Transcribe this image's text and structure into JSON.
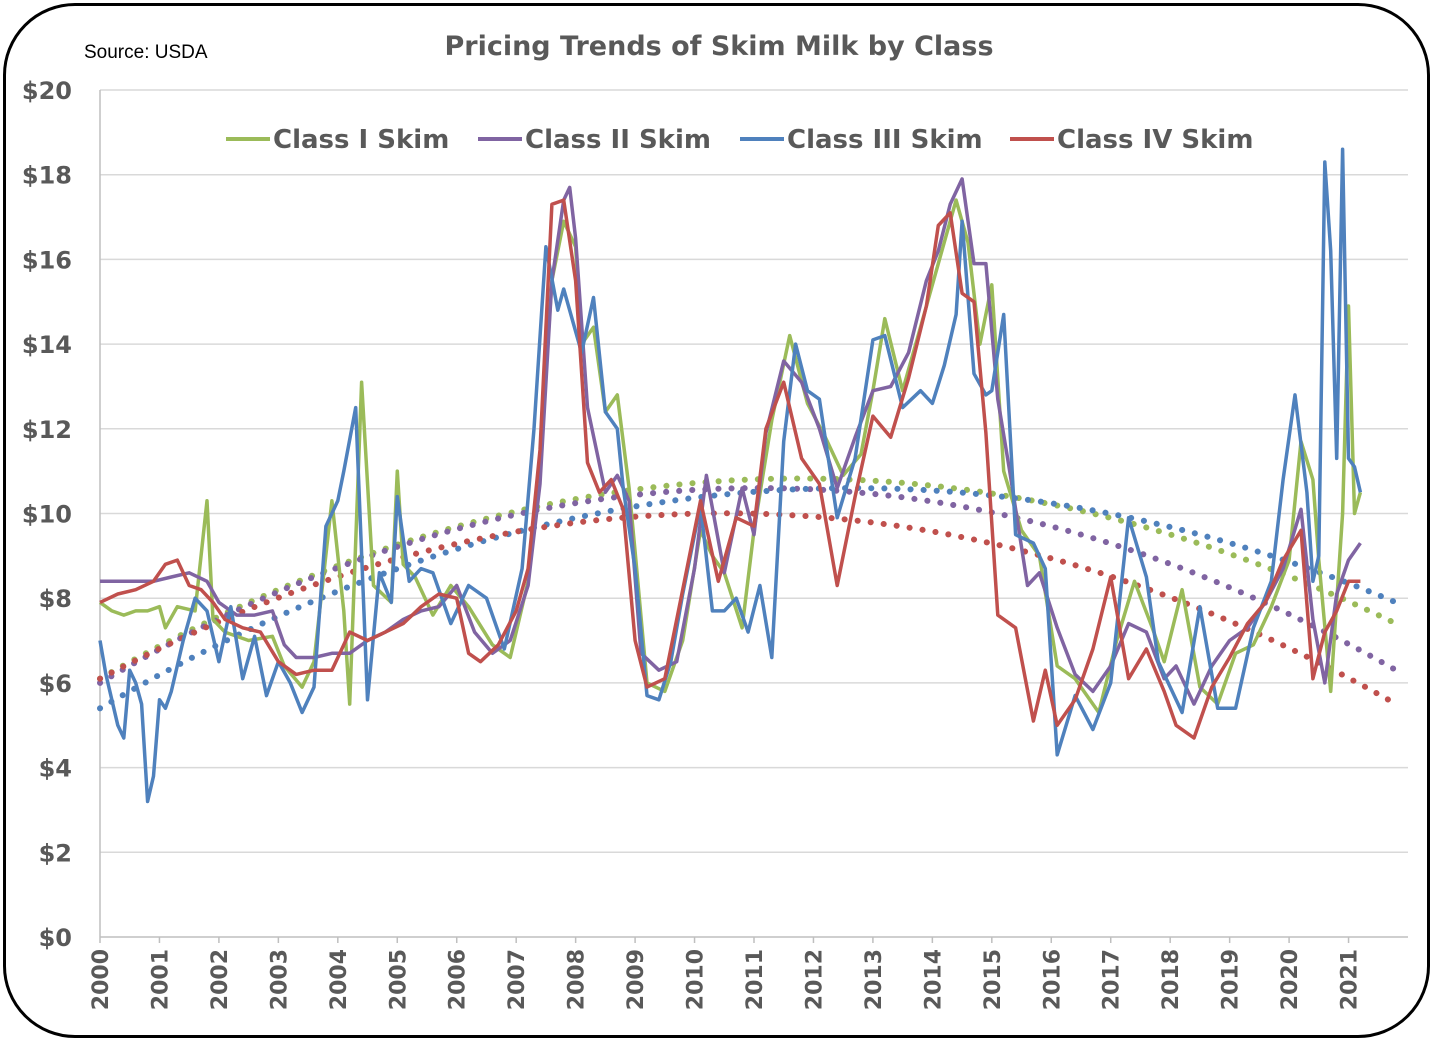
{
  "chart_data": {
    "type": "line",
    "title": "Pricing Trends of Skim Milk by Class",
    "source": "Source: USDA",
    "xlabel": "",
    "ylabel": "",
    "ylim": [
      0,
      20
    ],
    "xlim": [
      2000,
      2022
    ],
    "y_ticks": [
      0,
      2,
      4,
      6,
      8,
      10,
      12,
      14,
      16,
      18,
      20
    ],
    "y_tick_labels": [
      "$0",
      "$2",
      "$4",
      "$6",
      "$8",
      "$10",
      "$12",
      "$14",
      "$16",
      "$18",
      "$20"
    ],
    "x_ticks": [
      2000,
      2001,
      2002,
      2003,
      2004,
      2005,
      2006,
      2007,
      2008,
      2009,
      2010,
      2011,
      2012,
      2013,
      2014,
      2015,
      2016,
      2017,
      2018,
      2019,
      2020,
      2021
    ],
    "x_tick_labels": [
      "2000",
      "2001",
      "2002",
      "2003",
      "2004",
      "2005",
      "2006",
      "2007",
      "2008",
      "2009",
      "2010",
      "2011",
      "2012",
      "2013",
      "2014",
      "2015",
      "2016",
      "2017",
      "2018",
      "2019",
      "2020",
      "2021"
    ],
    "grid": true,
    "legend_position": "top-center",
    "series": [
      {
        "name": "Class I Skim",
        "color": "#9BBB59",
        "x": [
          2000.0,
          2000.2,
          2000.4,
          2000.6,
          2000.8,
          2001.0,
          2001.1,
          2001.3,
          2001.6,
          2001.8,
          2001.9,
          2002.1,
          2002.5,
          2002.9,
          2003.1,
          2003.4,
          2003.6,
          2003.9,
          2004.1,
          2004.2,
          2004.4,
          2004.6,
          2004.9,
          2005.0,
          2005.1,
          2005.3,
          2005.6,
          2005.9,
          2006.2,
          2006.6,
          2006.9,
          2007.2,
          2007.4,
          2007.6,
          2007.8,
          2008.0,
          2008.1,
          2008.3,
          2008.5,
          2008.7,
          2008.9,
          2009.0,
          2009.2,
          2009.5,
          2009.8,
          2010.1,
          2010.3,
          2010.5,
          2010.8,
          2011.0,
          2011.3,
          2011.6,
          2011.9,
          2012.2,
          2012.5,
          2012.8,
          2013.0,
          2013.2,
          2013.5,
          2013.8,
          2014.1,
          2014.4,
          2014.6,
          2014.8,
          2015.0,
          2015.2,
          2015.5,
          2015.8,
          2016.1,
          2016.4,
          2016.8,
          2017.1,
          2017.4,
          2017.7,
          2017.9,
          2018.2,
          2018.5,
          2018.8,
          2019.1,
          2019.4,
          2019.7,
          2020.0,
          2020.2,
          2020.4,
          2020.5,
          2020.7,
          2020.9,
          2021.0,
          2021.1,
          2021.2
        ],
        "values": [
          7.9,
          7.7,
          7.6,
          7.7,
          7.7,
          7.8,
          7.3,
          7.8,
          7.7,
          10.3,
          7.5,
          7.2,
          7.0,
          7.1,
          6.4,
          5.9,
          6.5,
          10.3,
          7.7,
          5.5,
          13.1,
          8.3,
          7.9,
          11.0,
          8.8,
          8.5,
          7.6,
          8.3,
          7.8,
          6.9,
          6.6,
          8.4,
          11.2,
          15.5,
          16.9,
          16.3,
          14.0,
          14.4,
          12.4,
          12.8,
          10.6,
          9.1,
          6.0,
          5.8,
          7.0,
          9.6,
          9.0,
          8.6,
          7.3,
          9.6,
          12.2,
          14.2,
          12.6,
          11.8,
          10.9,
          11.4,
          12.9,
          14.6,
          12.9,
          14.4,
          15.9,
          17.4,
          16.4,
          14.0,
          15.4,
          11.0,
          9.6,
          9.0,
          6.4,
          6.1,
          5.3,
          7.0,
          8.4,
          7.3,
          6.5,
          8.2,
          5.9,
          5.5,
          6.7,
          6.9,
          7.8,
          8.9,
          11.7,
          10.8,
          8.9,
          5.8,
          10.0,
          14.9,
          10.0,
          10.5
        ]
      },
      {
        "name": "Class II Skim",
        "color": "#8064A2",
        "x": [
          2000.0,
          2000.3,
          2000.6,
          2000.9,
          2001.2,
          2001.5,
          2001.8,
          2002.0,
          2002.3,
          2002.6,
          2002.9,
          2003.1,
          2003.3,
          2003.6,
          2003.9,
          2004.2,
          2004.5,
          2004.8,
          2005.1,
          2005.4,
          2005.7,
          2006.0,
          2006.3,
          2006.6,
          2006.9,
          2007.2,
          2007.4,
          2007.6,
          2007.8,
          2007.9,
          2008.0,
          2008.2,
          2008.5,
          2008.7,
          2008.9,
          2009.1,
          2009.4,
          2009.7,
          2010.0,
          2010.2,
          2010.5,
          2010.8,
          2011.0,
          2011.2,
          2011.5,
          2011.8,
          2012.1,
          2012.4,
          2012.7,
          2013.0,
          2013.3,
          2013.6,
          2013.9,
          2014.1,
          2014.3,
          2014.5,
          2014.7,
          2014.9,
          2015.1,
          2015.3,
          2015.6,
          2015.8,
          2016.1,
          2016.4,
          2016.7,
          2017.0,
          2017.3,
          2017.6,
          2017.9,
          2018.1,
          2018.4,
          2018.7,
          2019.0,
          2019.3,
          2019.6,
          2019.9,
          2020.2,
          2020.4,
          2020.6,
          2020.8,
          2021.0,
          2021.2
        ],
        "values": [
          8.4,
          8.4,
          8.4,
          8.4,
          8.5,
          8.6,
          8.4,
          7.9,
          7.6,
          7.6,
          7.7,
          6.9,
          6.6,
          6.6,
          6.7,
          6.7,
          7.0,
          7.2,
          7.5,
          7.7,
          7.8,
          8.3,
          7.2,
          6.7,
          7.0,
          8.3,
          10.7,
          15.5,
          17.4,
          17.7,
          16.5,
          12.5,
          10.5,
          10.9,
          10.3,
          6.7,
          6.3,
          6.5,
          8.7,
          10.9,
          8.6,
          10.6,
          9.5,
          11.9,
          13.6,
          13.1,
          12.0,
          10.6,
          11.8,
          12.9,
          13.0,
          13.8,
          15.5,
          16.2,
          17.3,
          17.9,
          15.9,
          15.9,
          12.7,
          11.0,
          8.3,
          8.6,
          7.3,
          6.2,
          5.8,
          6.4,
          7.4,
          7.2,
          6.1,
          6.4,
          5.5,
          6.4,
          7.0,
          7.3,
          7.9,
          8.7,
          10.1,
          7.5,
          6.0,
          8.1,
          8.9,
          9.3
        ]
      },
      {
        "name": "Class III Skim",
        "color": "#4F81BD",
        "x": [
          2000.0,
          2000.1,
          2000.3,
          2000.4,
          2000.5,
          2000.6,
          2000.7,
          2000.8,
          2000.9,
          2001.0,
          2001.1,
          2001.2,
          2001.4,
          2001.6,
          2001.8,
          2002.0,
          2002.2,
          2002.4,
          2002.6,
          2002.8,
          2003.0,
          2003.2,
          2003.4,
          2003.6,
          2003.8,
          2004.0,
          2004.1,
          2004.3,
          2004.5,
          2004.7,
          2004.9,
          2005.0,
          2005.2,
          2005.4,
          2005.6,
          2005.9,
          2006.2,
          2006.5,
          2006.8,
          2007.1,
          2007.3,
          2007.5,
          2007.7,
          2007.8,
          2008.0,
          2008.1,
          2008.3,
          2008.5,
          2008.7,
          2008.8,
          2009.0,
          2009.2,
          2009.4,
          2009.6,
          2009.8,
          2010.1,
          2010.3,
          2010.5,
          2010.7,
          2010.9,
          2011.1,
          2011.3,
          2011.5,
          2011.7,
          2011.9,
          2012.1,
          2012.4,
          2012.7,
          2013.0,
          2013.2,
          2013.5,
          2013.8,
          2014.0,
          2014.2,
          2014.4,
          2014.5,
          2014.7,
          2014.9,
          2015.0,
          2015.2,
          2015.4,
          2015.7,
          2015.9,
          2016.1,
          2016.4,
          2016.7,
          2017.0,
          2017.3,
          2017.6,
          2017.8,
          2018.0,
          2018.2,
          2018.5,
          2018.8,
          2019.1,
          2019.4,
          2019.7,
          2019.9,
          2020.1,
          2020.3,
          2020.4,
          2020.5,
          2020.6,
          2020.7,
          2020.8,
          2020.9,
          2021.0,
          2021.1,
          2021.2
        ],
        "values": [
          7.0,
          6.2,
          5.0,
          4.7,
          6.3,
          6.0,
          5.5,
          3.2,
          3.8,
          5.6,
          5.4,
          5.8,
          7.0,
          8.0,
          7.7,
          6.5,
          7.8,
          6.1,
          7.1,
          5.7,
          6.5,
          6.0,
          5.3,
          5.9,
          9.7,
          10.3,
          11.0,
          12.5,
          5.6,
          8.6,
          7.9,
          10.4,
          8.4,
          8.7,
          8.6,
          7.4,
          8.3,
          8.0,
          6.8,
          8.7,
          12.0,
          16.3,
          14.8,
          15.3,
          14.3,
          13.8,
          15.1,
          12.4,
          12.0,
          10.6,
          8.7,
          5.7,
          5.6,
          6.5,
          8.1,
          10.2,
          7.7,
          7.7,
          8.0,
          7.2,
          8.3,
          6.6,
          11.7,
          14.0,
          12.9,
          12.7,
          9.9,
          11.3,
          14.1,
          14.2,
          12.5,
          12.9,
          12.6,
          13.5,
          14.7,
          16.9,
          13.3,
          12.8,
          12.9,
          14.7,
          9.5,
          9.3,
          8.7,
          4.3,
          5.7,
          4.9,
          6.0,
          9.9,
          8.5,
          6.5,
          5.9,
          5.3,
          7.8,
          5.4,
          5.4,
          7.3,
          8.4,
          10.8,
          12.8,
          10.5,
          8.4,
          9.0,
          18.3,
          16.2,
          11.3,
          18.6,
          11.3,
          11.1,
          10.5
        ]
      },
      {
        "name": "Class IV Skim",
        "color": "#C0504D",
        "x": [
          2000.0,
          2000.3,
          2000.6,
          2000.9,
          2001.1,
          2001.3,
          2001.5,
          2001.7,
          2001.9,
          2002.1,
          2002.4,
          2002.7,
          2003.0,
          2003.3,
          2003.6,
          2003.9,
          2004.2,
          2004.5,
          2004.8,
          2005.1,
          2005.4,
          2005.7,
          2006.0,
          2006.2,
          2006.4,
          2006.7,
          2007.0,
          2007.2,
          2007.4,
          2007.6,
          2007.8,
          2008.0,
          2008.2,
          2008.4,
          2008.6,
          2008.8,
          2009.0,
          2009.2,
          2009.5,
          2009.8,
          2010.1,
          2010.4,
          2010.7,
          2011.0,
          2011.2,
          2011.5,
          2011.8,
          2012.1,
          2012.4,
          2012.7,
          2013.0,
          2013.3,
          2013.6,
          2013.9,
          2014.1,
          2014.3,
          2014.5,
          2014.7,
          2014.9,
          2015.1,
          2015.4,
          2015.7,
          2015.9,
          2016.1,
          2016.4,
          2016.7,
          2017.0,
          2017.3,
          2017.6,
          2017.9,
          2018.1,
          2018.4,
          2018.7,
          2019.0,
          2019.3,
          2019.6,
          2019.9,
          2020.2,
          2020.4,
          2020.6,
          2020.8,
          2021.0,
          2021.2
        ],
        "values": [
          7.9,
          8.1,
          8.2,
          8.4,
          8.8,
          8.9,
          8.3,
          8.2,
          7.9,
          7.5,
          7.3,
          7.2,
          6.5,
          6.2,
          6.3,
          6.3,
          7.2,
          7.0,
          7.2,
          7.4,
          7.8,
          8.1,
          8.0,
          6.7,
          6.5,
          6.9,
          7.7,
          8.7,
          11.5,
          17.3,
          17.4,
          15.5,
          11.2,
          10.5,
          10.8,
          10.1,
          7.0,
          5.9,
          6.1,
          8.2,
          10.3,
          8.4,
          9.9,
          9.7,
          12.0,
          13.1,
          11.3,
          10.7,
          8.3,
          10.4,
          12.3,
          11.8,
          13.2,
          14.9,
          16.8,
          17.1,
          15.2,
          15.0,
          11.9,
          7.6,
          7.3,
          5.1,
          6.3,
          5.0,
          5.6,
          6.8,
          8.5,
          6.1,
          6.8,
          5.8,
          5.0,
          4.7,
          5.9,
          6.6,
          7.4,
          7.9,
          8.9,
          9.6,
          6.1,
          7.2,
          7.7,
          8.4,
          8.4
        ]
      }
    ],
    "trendlines": [
      {
        "name": "Class I Skim trend",
        "color": "#9BBB59",
        "style": "dotted",
        "x_start": 2000.0,
        "x_end": 2021.8,
        "values": [
          6.1,
          10.8,
          7.4
        ]
      },
      {
        "name": "Class II Skim trend",
        "color": "#8064A2",
        "style": "dotted",
        "x_start": 2000.0,
        "x_end": 2021.8,
        "values": [
          6.0,
          10.6,
          6.3
        ]
      },
      {
        "name": "Class III Skim trend",
        "color": "#4F81BD",
        "style": "dotted",
        "x_start": 2000.0,
        "x_end": 2021.8,
        "values": [
          5.4,
          10.5,
          7.9
        ]
      },
      {
        "name": "Class IV Skim trend",
        "color": "#C0504D",
        "style": "dotted",
        "x_start": 2000.0,
        "x_end": 2021.8,
        "values": [
          6.1,
          10.0,
          5.5
        ]
      }
    ]
  }
}
